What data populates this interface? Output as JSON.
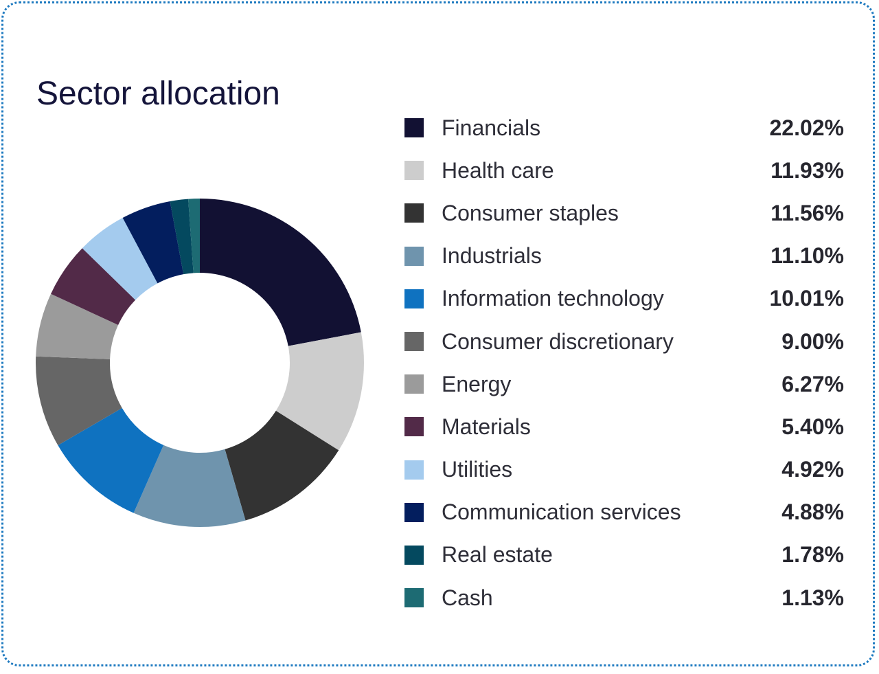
{
  "chart_data": {
    "type": "pie",
    "title": "Sector allocation",
    "donut": true,
    "legend_position": "right",
    "series": [
      {
        "name": "Financials",
        "value": 22.02,
        "label": "22.02%",
        "color": "#121133"
      },
      {
        "name": "Health care",
        "value": 11.93,
        "label": "11.93%",
        "color": "#cdcdcd"
      },
      {
        "name": "Consumer staples",
        "value": 11.56,
        "label": "11.56%",
        "color": "#333333"
      },
      {
        "name": "Industrials",
        "value": 11.1,
        "label": "11.10%",
        "color": "#6f94ad"
      },
      {
        "name": "Information technology",
        "value": 10.01,
        "label": "10.01%",
        "color": "#0f72c0"
      },
      {
        "name": "Consumer discretionary",
        "value": 9.0,
        "label": "9.00%",
        "color": "#666666"
      },
      {
        "name": "Energy",
        "value": 6.27,
        "label": "6.27%",
        "color": "#9b9b9b"
      },
      {
        "name": "Materials",
        "value": 5.4,
        "label": "5.40%",
        "color": "#522a48"
      },
      {
        "name": "Utilities",
        "value": 4.92,
        "label": "4.92%",
        "color": "#a4cbee"
      },
      {
        "name": "Communication services",
        "value": 4.88,
        "label": "4.88%",
        "color": "#031e5e"
      },
      {
        "name": "Real estate",
        "value": 1.78,
        "label": "1.78%",
        "color": "#04495f"
      },
      {
        "name": "Cash",
        "value": 1.13,
        "label": "1.13%",
        "color": "#1d6b73"
      }
    ]
  }
}
